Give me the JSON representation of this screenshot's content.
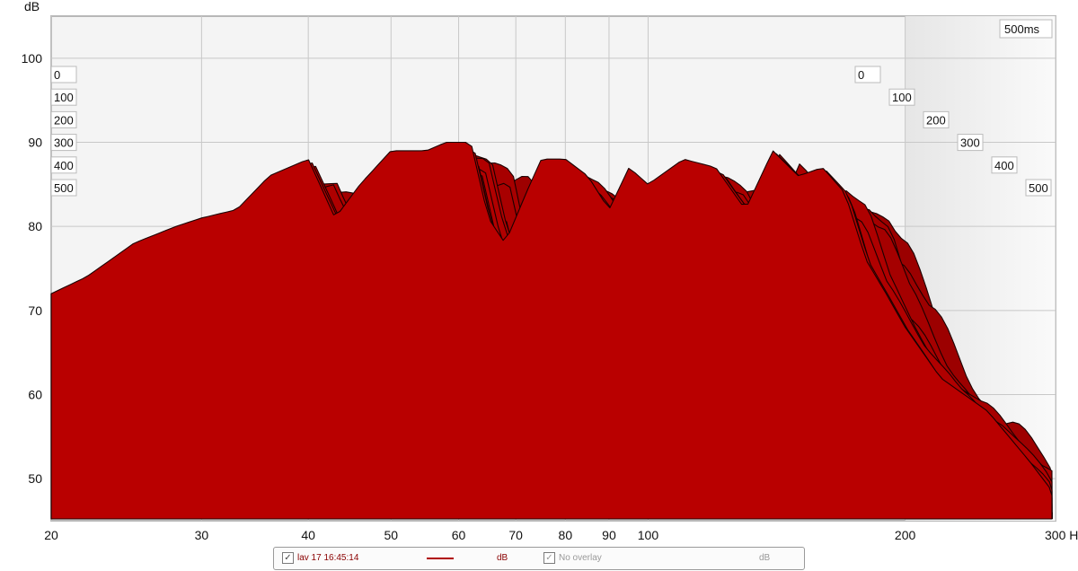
{
  "chart_data": {
    "type": "area",
    "title": "",
    "xlabel": "Hz",
    "ylabel": "dB",
    "x_scale": "log",
    "xlim": [
      20,
      300
    ],
    "ylim": [
      45,
      105
    ],
    "x_ticks": [
      20,
      30,
      40,
      50,
      60,
      70,
      80,
      90,
      100,
      200,
      "300 Hz"
    ],
    "y_ticks": [
      50,
      60,
      70,
      80,
      90,
      100
    ],
    "time_axis_label": "500ms",
    "time_slices_ms": [
      0,
      100,
      200,
      300,
      400,
      500
    ],
    "time_slice_labels": [
      "0",
      "100",
      "200",
      "300",
      "400",
      "500"
    ],
    "grid": true,
    "series": [
      {
        "name": "lav 17 16:45:14",
        "time_ms": 0,
        "x": [
          20,
          22,
          25,
          28,
          30,
          33,
          36,
          40,
          43,
          46,
          50,
          55,
          58,
          62,
          65,
          68,
          72,
          75,
          80,
          85,
          90,
          95,
          100,
          110,
          120,
          130,
          140,
          150,
          160,
          170,
          180,
          190,
          200,
          220,
          250,
          280,
          300
        ],
        "values": [
          72,
          74,
          78,
          80,
          81,
          82,
          86,
          88,
          81,
          85,
          89,
          89,
          90,
          90,
          81,
          78,
          84,
          88,
          88,
          86,
          82,
          87,
          85,
          88,
          87,
          82,
          89,
          86,
          87,
          84,
          76,
          72,
          68,
          62,
          58,
          52,
          48
        ]
      }
    ],
    "colors": {
      "fill": "#b30000",
      "stroke": "#1a0000",
      "legend_line": "#b00000"
    }
  },
  "legend": {
    "series_label": "lav 17 16:45:14",
    "series_units": "dB",
    "overlay_label": "No overlay",
    "overlay_units": "dB"
  }
}
